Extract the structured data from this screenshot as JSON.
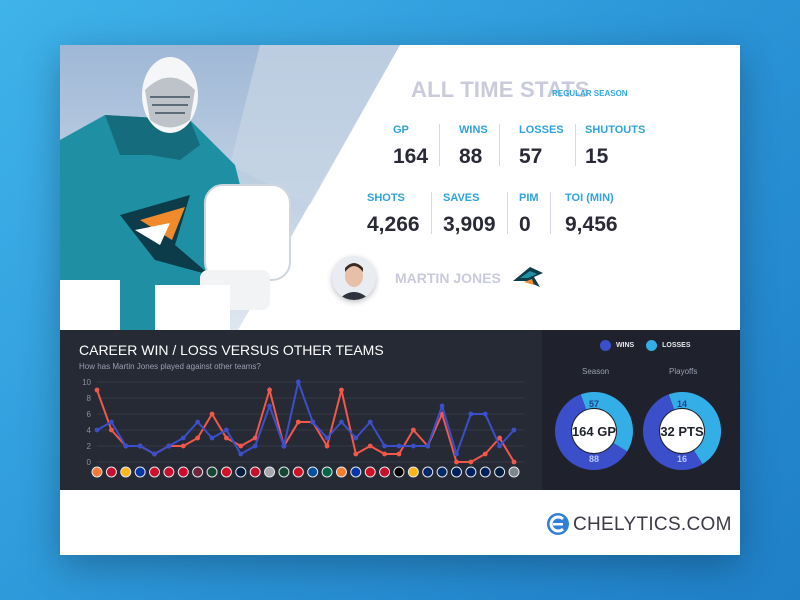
{
  "stats": {
    "title": "ALL TIME STATS",
    "subtitle": "REGULAR SEASON",
    "row1": [
      {
        "label": "GP",
        "value": "164"
      },
      {
        "label": "WINS",
        "value": "88"
      },
      {
        "label": "LOSSES",
        "value": "57"
      },
      {
        "label": "SHUTOUTS",
        "value": "15"
      }
    ],
    "row2": [
      {
        "label": "SHOTS",
        "value": "4,266"
      },
      {
        "label": "SAVES",
        "value": "3,909"
      },
      {
        "label": "PIM",
        "value": "0"
      },
      {
        "label": "TOI (MIN)",
        "value": "9,456"
      }
    ]
  },
  "player": {
    "name": "MARTIN JONES"
  },
  "colors": {
    "wins": "#3a4fc9",
    "losses": "#33aee6",
    "accent": "#2ea3dc",
    "losses_line": "#f2584a"
  },
  "brand": {
    "name": "CHELYTICS.COM"
  },
  "icons": {
    "brand": "chelytics-logo-icon",
    "team": "sharks-logo-icon",
    "avatar": "player-avatar"
  },
  "chart_data": [
    {
      "type": "line",
      "title": "CAREER WIN / LOSS VERSUS OTHER TEAMS",
      "subtitle": "How has Martin Jones played against other teams?",
      "ylim": [
        0,
        10
      ],
      "y_ticks": [
        0,
        2,
        4,
        6,
        8,
        10
      ],
      "x_count": 30,
      "grid": true,
      "series": [
        {
          "name": "WINS",
          "color": "#3a4fc9",
          "values": [
            4,
            5,
            2,
            2,
            1,
            2,
            3,
            5,
            3,
            4,
            1,
            2,
            7,
            2,
            10,
            5,
            3,
            5,
            3,
            5,
            2,
            2,
            2,
            2,
            7,
            1,
            6,
            6,
            2,
            4
          ]
        },
        {
          "name": "LOSSES",
          "color": "#f2584a",
          "values": [
            9,
            4,
            2,
            2,
            1,
            2,
            2,
            3,
            6,
            3,
            2,
            3,
            9,
            2,
            5,
            5,
            2,
            9,
            1,
            2,
            1,
            1,
            4,
            2,
            6,
            0,
            0,
            1,
            3,
            0
          ]
        }
      ]
    },
    {
      "type": "pie",
      "title": "Season",
      "center_label": "164 GP",
      "slices": [
        {
          "name": "WINS",
          "value": 88
        },
        {
          "name": "LOSSES",
          "value": 57
        }
      ]
    },
    {
      "type": "pie",
      "title": "Playoffs",
      "center_label": "32 PTS",
      "slices": [
        {
          "name": "WINS",
          "value": 16
        },
        {
          "name": "LOSSES",
          "value": 14
        }
      ]
    }
  ],
  "legend": {
    "wins": "WINS",
    "losses": "LOSSES"
  }
}
